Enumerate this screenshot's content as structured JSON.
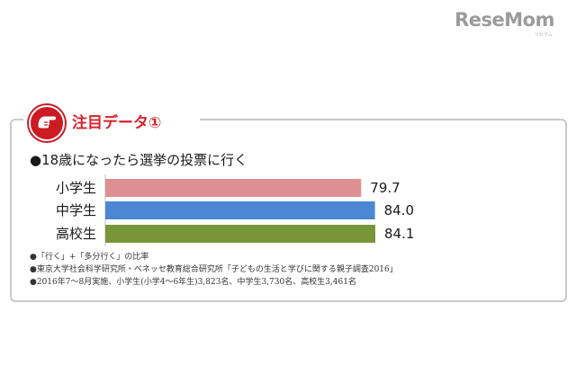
{
  "logo": {
    "text": "ReseMom",
    "sub": "リセマム"
  },
  "header": {
    "title": "注目データ①"
  },
  "question": "●18歳になったら選挙の投票に行く",
  "chart_data": {
    "type": "bar",
    "orientation": "horizontal",
    "categories": [
      "小学生",
      "中学生",
      "高校生"
    ],
    "values": [
      79.7,
      84.0,
      84.1
    ],
    "value_labels": [
      "79.7",
      "84.0",
      "84.1"
    ],
    "colors": [
      "#de8f92",
      "#4b87d2",
      "#779638"
    ],
    "xlim": [
      0,
      84.1
    ],
    "title": "",
    "xlabel": "",
    "ylabel": ""
  },
  "notes": [
    "●「行く」+「多分行く」の比率",
    "●東京大学社会科学研究所・ベネッセ教育総合研究所「子どもの生活と学びに関する親子調査2016」",
    "●2016年7〜8月実施、小学生(小学4〜6年生)3,823名、中学生3,730名、高校生3,461名"
  ]
}
